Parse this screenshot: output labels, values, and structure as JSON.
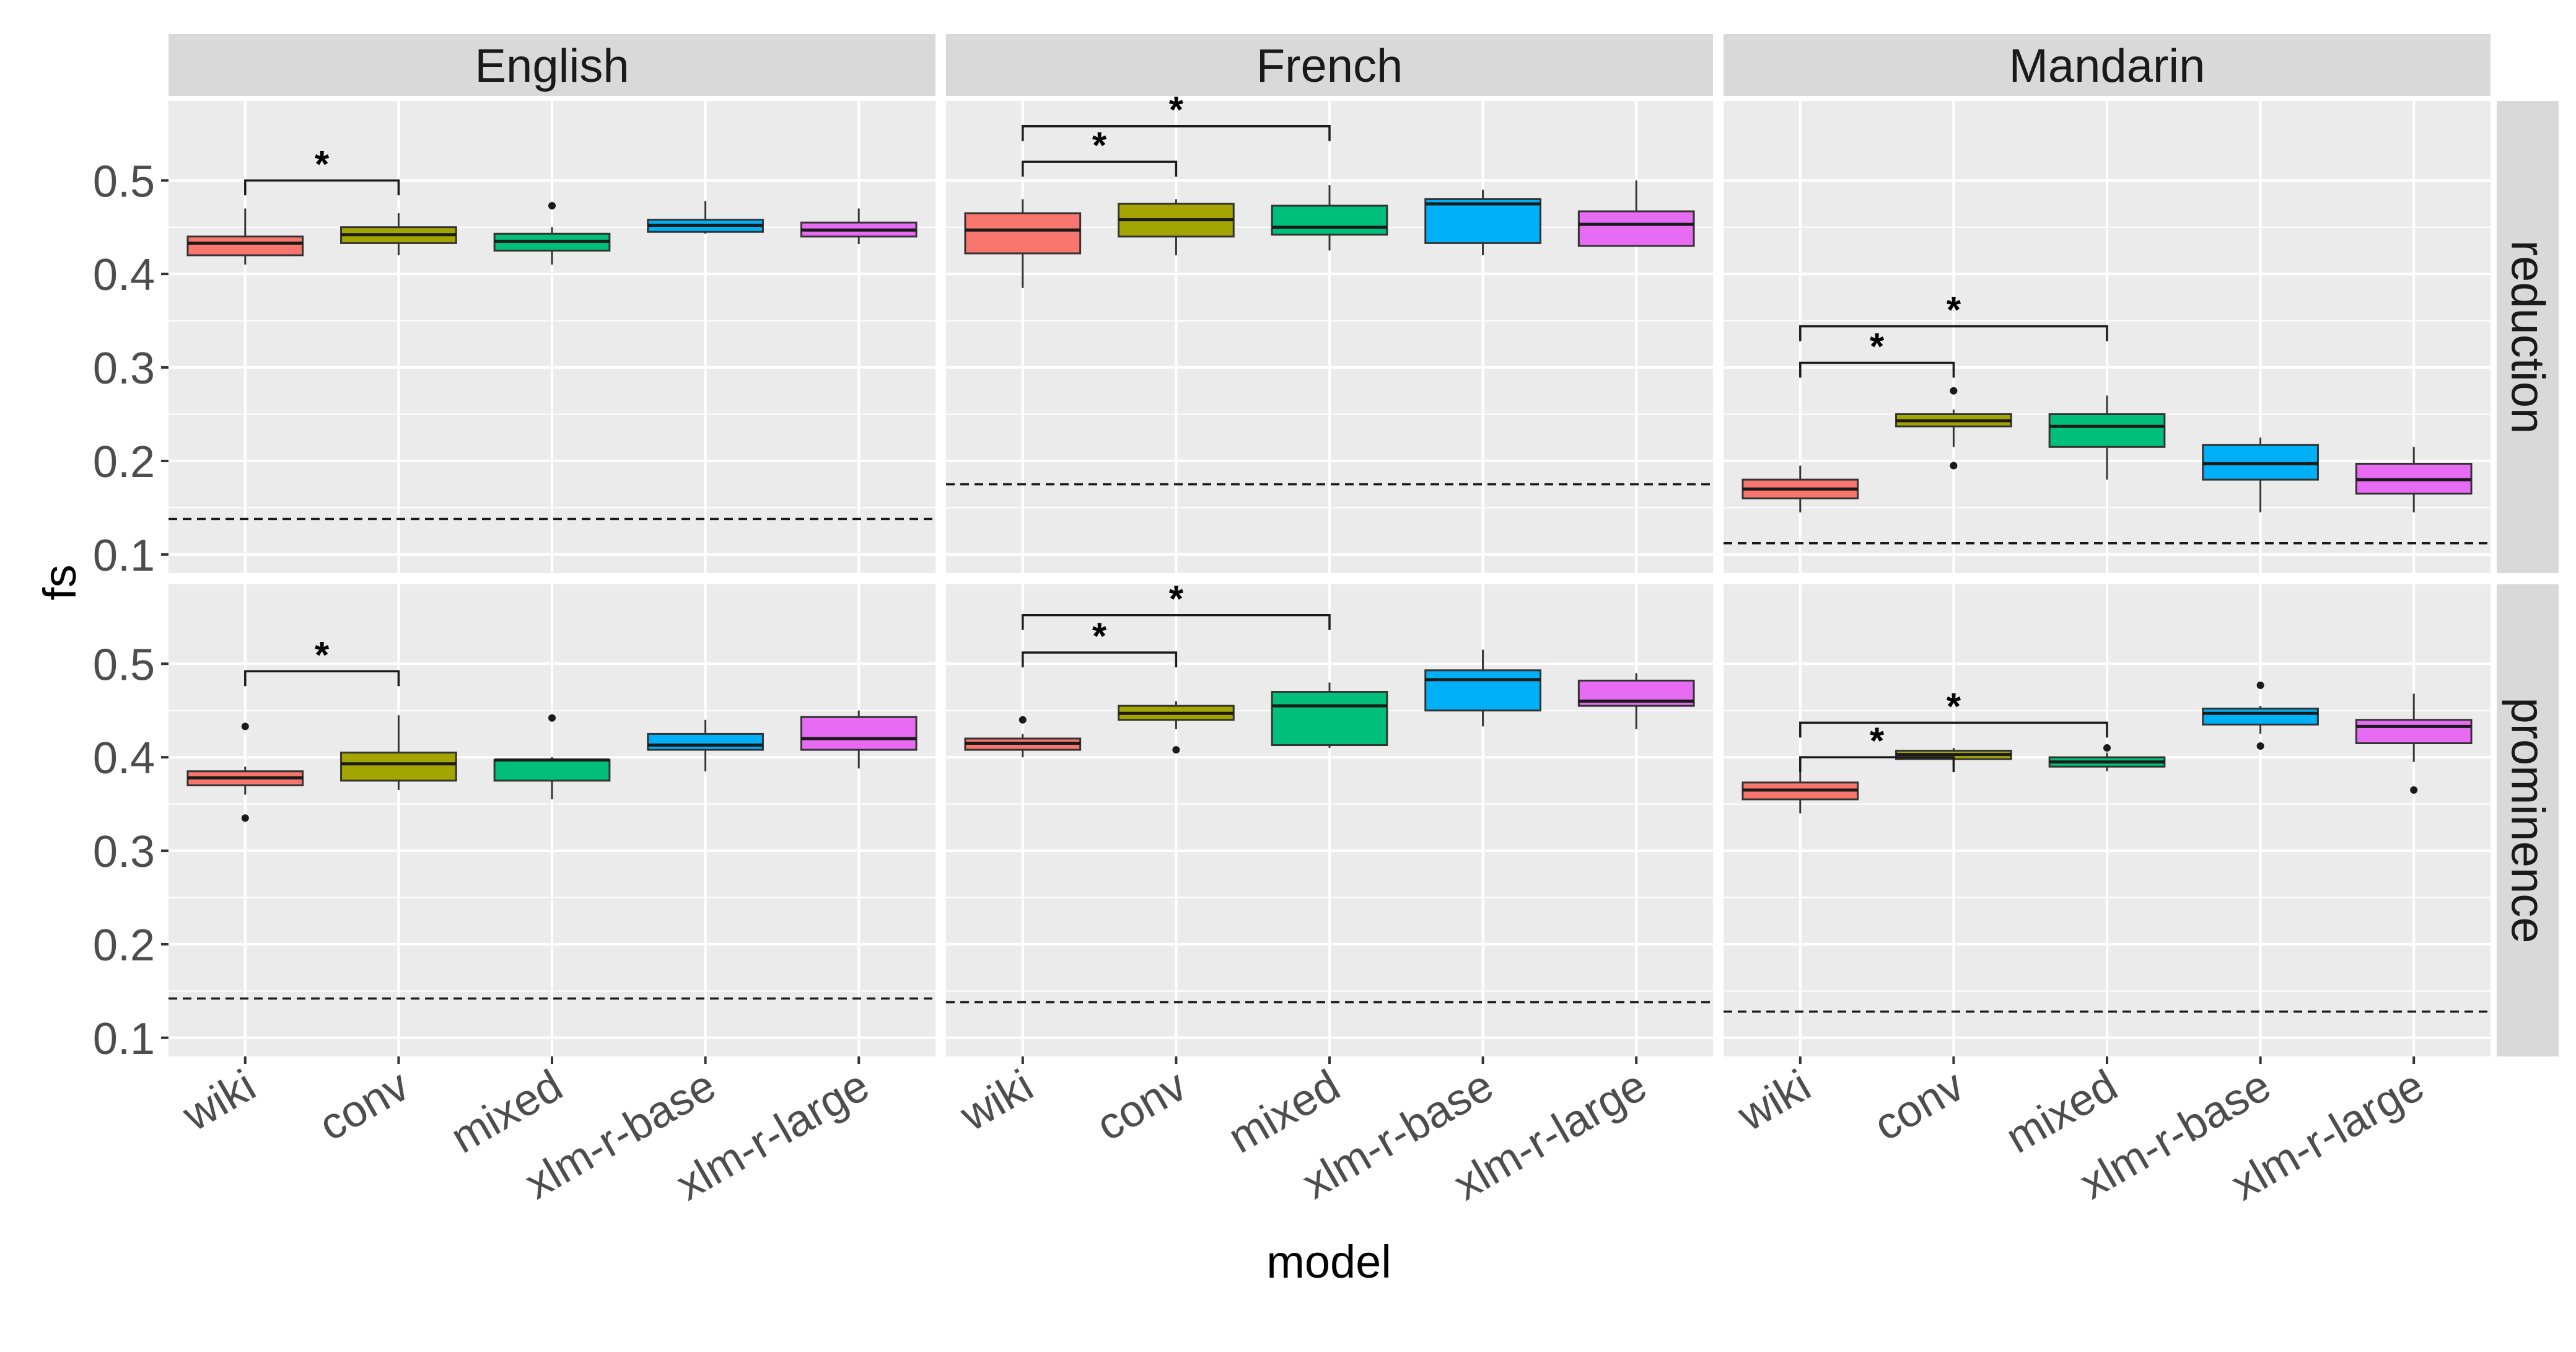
{
  "chart_data": {
    "type": "boxplot",
    "xlabel": "model",
    "ylabel": "fs",
    "ylim": [
      0.08,
      0.585
    ],
    "yticks": [
      "0.1",
      "0.2",
      "0.3",
      "0.4",
      "0.5"
    ],
    "categories": [
      "wiki",
      "conv",
      "mixed",
      "xlm-r-base",
      "xlm-r-large"
    ],
    "columns": [
      "English",
      "French",
      "Mandarin"
    ],
    "rows": [
      "reduction",
      "prominence"
    ],
    "grid": true,
    "legend": "none",
    "colors": [
      "#F8766D",
      "#A3A500",
      "#00BF7D",
      "#00B0F6",
      "#E76BF3"
    ],
    "significance_marker": "*",
    "panels": [
      {
        "row": "reduction",
        "column": "English",
        "baseline": 0.138,
        "boxes": [
          {
            "category": "wiki",
            "min": 0.41,
            "q1": 0.42,
            "median": 0.433,
            "q3": 0.44,
            "max": 0.47,
            "outliers": []
          },
          {
            "category": "conv",
            "min": 0.42,
            "q1": 0.433,
            "median": 0.442,
            "q3": 0.45,
            "max": 0.465,
            "outliers": []
          },
          {
            "category": "mixed",
            "min": 0.41,
            "q1": 0.425,
            "median": 0.435,
            "q3": 0.443,
            "max": 0.45,
            "outliers": [
              0.473
            ]
          },
          {
            "category": "xlm-r-base",
            "min": 0.443,
            "q1": 0.445,
            "median": 0.452,
            "q3": 0.458,
            "max": 0.478,
            "outliers": []
          },
          {
            "category": "xlm-r-large",
            "min": 0.432,
            "q1": 0.44,
            "median": 0.447,
            "q3": 0.455,
            "max": 0.47,
            "outliers": []
          }
        ],
        "comparisons": [
          {
            "from": "wiki",
            "to": "conv",
            "y": 0.5
          }
        ]
      },
      {
        "row": "reduction",
        "column": "French",
        "baseline": 0.175,
        "boxes": [
          {
            "category": "wiki",
            "min": 0.385,
            "q1": 0.422,
            "median": 0.447,
            "q3": 0.465,
            "max": 0.48,
            "outliers": []
          },
          {
            "category": "conv",
            "min": 0.42,
            "q1": 0.44,
            "median": 0.458,
            "q3": 0.475,
            "max": 0.48,
            "outliers": []
          },
          {
            "category": "mixed",
            "min": 0.425,
            "q1": 0.442,
            "median": 0.45,
            "q3": 0.473,
            "max": 0.495,
            "outliers": []
          },
          {
            "category": "xlm-r-base",
            "min": 0.42,
            "q1": 0.433,
            "median": 0.475,
            "q3": 0.48,
            "max": 0.49,
            "outliers": []
          },
          {
            "category": "xlm-r-large",
            "min": 0.43,
            "q1": 0.43,
            "median": 0.453,
            "q3": 0.467,
            "max": 0.5,
            "outliers": []
          }
        ],
        "comparisons": [
          {
            "from": "wiki",
            "to": "conv",
            "y": 0.52
          },
          {
            "from": "wiki",
            "to": "mixed",
            "y": 0.558
          }
        ]
      },
      {
        "row": "reduction",
        "column": "Mandarin",
        "baseline": 0.112,
        "boxes": [
          {
            "category": "wiki",
            "min": 0.145,
            "q1": 0.16,
            "median": 0.17,
            "q3": 0.18,
            "max": 0.195,
            "outliers": []
          },
          {
            "category": "conv",
            "min": 0.215,
            "q1": 0.237,
            "median": 0.243,
            "q3": 0.25,
            "max": 0.255,
            "outliers": [
              0.275,
              0.195
            ]
          },
          {
            "category": "mixed",
            "min": 0.18,
            "q1": 0.215,
            "median": 0.237,
            "q3": 0.25,
            "max": 0.27,
            "outliers": []
          },
          {
            "category": "xlm-r-base",
            "min": 0.145,
            "q1": 0.18,
            "median": 0.197,
            "q3": 0.217,
            "max": 0.225,
            "outliers": []
          },
          {
            "category": "xlm-r-large",
            "min": 0.145,
            "q1": 0.165,
            "median": 0.18,
            "q3": 0.197,
            "max": 0.215,
            "outliers": []
          }
        ],
        "comparisons": [
          {
            "from": "wiki",
            "to": "conv",
            "y": 0.305
          },
          {
            "from": "wiki",
            "to": "mixed",
            "y": 0.344
          }
        ]
      },
      {
        "row": "prominence",
        "column": "English",
        "baseline": 0.142,
        "boxes": [
          {
            "category": "wiki",
            "min": 0.36,
            "q1": 0.37,
            "median": 0.378,
            "q3": 0.385,
            "max": 0.39,
            "outliers": [
              0.433,
              0.335
            ]
          },
          {
            "category": "conv",
            "min": 0.365,
            "q1": 0.375,
            "median": 0.393,
            "q3": 0.405,
            "max": 0.445,
            "outliers": []
          },
          {
            "category": "mixed",
            "min": 0.355,
            "q1": 0.375,
            "median": 0.397,
            "q3": 0.397,
            "max": 0.4,
            "outliers": [
              0.442
            ]
          },
          {
            "category": "xlm-r-base",
            "min": 0.385,
            "q1": 0.408,
            "median": 0.413,
            "q3": 0.425,
            "max": 0.44,
            "outliers": []
          },
          {
            "category": "xlm-r-large",
            "min": 0.388,
            "q1": 0.408,
            "median": 0.42,
            "q3": 0.443,
            "max": 0.45,
            "outliers": []
          }
        ],
        "comparisons": [
          {
            "from": "wiki",
            "to": "conv",
            "y": 0.492
          }
        ]
      },
      {
        "row": "prominence",
        "column": "French",
        "baseline": 0.138,
        "boxes": [
          {
            "category": "wiki",
            "min": 0.4,
            "q1": 0.408,
            "median": 0.415,
            "q3": 0.42,
            "max": 0.425,
            "outliers": [
              0.44
            ]
          },
          {
            "category": "conv",
            "min": 0.43,
            "q1": 0.44,
            "median": 0.447,
            "q3": 0.455,
            "max": 0.46,
            "outliers": [
              0.408
            ]
          },
          {
            "category": "mixed",
            "min": 0.41,
            "q1": 0.413,
            "median": 0.455,
            "q3": 0.47,
            "max": 0.48,
            "outliers": []
          },
          {
            "category": "xlm-r-base",
            "min": 0.433,
            "q1": 0.45,
            "median": 0.483,
            "q3": 0.493,
            "max": 0.515,
            "outliers": []
          },
          {
            "category": "xlm-r-large",
            "min": 0.43,
            "q1": 0.455,
            "median": 0.46,
            "q3": 0.482,
            "max": 0.49,
            "outliers": []
          }
        ],
        "comparisons": [
          {
            "from": "wiki",
            "to": "conv",
            "y": 0.512
          },
          {
            "from": "wiki",
            "to": "mixed",
            "y": 0.552
          }
        ]
      },
      {
        "row": "prominence",
        "column": "Mandarin",
        "baseline": 0.128,
        "boxes": [
          {
            "category": "wiki",
            "min": 0.34,
            "q1": 0.355,
            "median": 0.365,
            "q3": 0.373,
            "max": 0.4,
            "outliers": []
          },
          {
            "category": "conv",
            "min": 0.39,
            "q1": 0.398,
            "median": 0.403,
            "q3": 0.407,
            "max": 0.41,
            "outliers": []
          },
          {
            "category": "mixed",
            "min": 0.385,
            "q1": 0.39,
            "median": 0.395,
            "q3": 0.4,
            "max": 0.405,
            "outliers": [
              0.41
            ]
          },
          {
            "category": "xlm-r-base",
            "min": 0.425,
            "q1": 0.435,
            "median": 0.447,
            "q3": 0.452,
            "max": 0.455,
            "outliers": [
              0.477,
              0.412
            ]
          },
          {
            "category": "xlm-r-large",
            "min": 0.395,
            "q1": 0.415,
            "median": 0.433,
            "q3": 0.44,
            "max": 0.468,
            "outliers": [
              0.365
            ]
          }
        ],
        "comparisons": [
          {
            "from": "wiki",
            "to": "conv",
            "y": 0.4
          },
          {
            "from": "wiki",
            "to": "mixed",
            "y": 0.437
          }
        ]
      }
    ]
  }
}
